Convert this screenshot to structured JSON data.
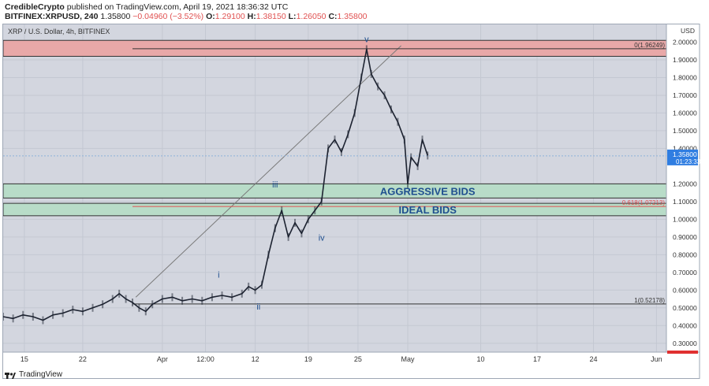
{
  "header": {
    "publisher": "CredibleCrypto",
    "published_text": "published on TradingView.com, April 19, 2021 18:36:32 UTC",
    "symbol": "BITFINEX:XRPUSD, 240",
    "last": "1.35800",
    "change": "−0.04960 (−3.52%)",
    "o_label": "O:",
    "o_value": "1.29100",
    "h_label": "H:",
    "h_value": "1.38150",
    "l_label": "L:",
    "l_value": "1.26050",
    "c_label": "C:",
    "c_value": "1.35800"
  },
  "chart_title": "XRP / U.S. Dollar, 4h, BITFINEX",
  "footer": {
    "brand": "TradingView"
  },
  "chart_data": {
    "type": "line",
    "title": "XRP / U.S. Dollar, 4h, BITFINEX",
    "currency_label": "USD",
    "yaxis_labels": [
      "2.00000",
      "1.90000",
      "1.80000",
      "1.70000",
      "1.60000",
      "1.50000",
      "1.40000",
      "1.20000",
      "1.10000",
      "1.00000",
      "0.90000",
      "0.80000",
      "0.70000",
      "0.60000",
      "0.50000",
      "0.40000",
      "0.30000"
    ],
    "ylim": [
      0.25,
      2.1
    ],
    "xaxis_labels": [
      "15",
      "22",
      "Apr",
      "12:00",
      "12",
      "19",
      "25",
      "May",
      "10",
      "17",
      "24",
      "Jun"
    ],
    "price_tag": {
      "value": 1.358,
      "label": "1.35800",
      "countdown": "01:23:33"
    },
    "zones": [
      {
        "label": "",
        "from": 1.92,
        "to": 2.01,
        "color": "#e8a8a8"
      },
      {
        "label": "AGGRESSIVE BIDS",
        "from": 1.12,
        "to": 1.2,
        "color": "#b8dcc8"
      },
      {
        "label": "IDEAL BIDS",
        "from": 1.02,
        "to": 1.09,
        "color": "#b8dcc8"
      }
    ],
    "fib_levels": [
      {
        "label": "0(1.96249)",
        "value": 1.96249
      },
      {
        "label": "0.618(1.07213)",
        "value": 1.07213
      },
      {
        "label": "1(0.52178)",
        "value": 0.52178
      }
    ],
    "wave_labels": [
      {
        "label": "i",
        "t": 0.325,
        "y": 0.67
      },
      {
        "label": "ii",
        "t": 0.385,
        "y": 0.49
      },
      {
        "label": "iii",
        "t": 0.41,
        "y": 1.18
      },
      {
        "label": "iv",
        "t": 0.48,
        "y": 0.88
      },
      {
        "label": "v",
        "t": 0.548,
        "y": 2.0
      }
    ],
    "series": [
      {
        "values": [
          [
            0.0,
            0.45
          ],
          [
            0.015,
            0.44
          ],
          [
            0.03,
            0.46
          ],
          [
            0.045,
            0.45
          ],
          [
            0.06,
            0.43
          ],
          [
            0.075,
            0.46
          ],
          [
            0.09,
            0.47
          ],
          [
            0.105,
            0.49
          ],
          [
            0.12,
            0.48
          ],
          [
            0.135,
            0.5
          ],
          [
            0.15,
            0.52
          ],
          [
            0.165,
            0.55
          ],
          [
            0.175,
            0.58
          ],
          [
            0.185,
            0.55
          ],
          [
            0.195,
            0.53
          ],
          [
            0.205,
            0.5
          ],
          [
            0.215,
            0.48
          ],
          [
            0.225,
            0.52
          ],
          [
            0.24,
            0.55
          ],
          [
            0.255,
            0.56
          ],
          [
            0.27,
            0.54
          ],
          [
            0.285,
            0.55
          ],
          [
            0.3,
            0.54
          ],
          [
            0.315,
            0.56
          ],
          [
            0.33,
            0.57
          ],
          [
            0.345,
            0.56
          ],
          [
            0.36,
            0.58
          ],
          [
            0.37,
            0.62
          ],
          [
            0.38,
            0.6
          ],
          [
            0.39,
            0.63
          ],
          [
            0.4,
            0.8
          ],
          [
            0.41,
            0.95
          ],
          [
            0.42,
            1.05
          ],
          [
            0.43,
            0.9
          ],
          [
            0.44,
            0.98
          ],
          [
            0.45,
            0.92
          ],
          [
            0.46,
            1.0
          ],
          [
            0.47,
            1.05
          ],
          [
            0.48,
            1.1
          ],
          [
            0.49,
            1.4
          ],
          [
            0.5,
            1.45
          ],
          [
            0.51,
            1.38
          ],
          [
            0.52,
            1.48
          ],
          [
            0.53,
            1.6
          ],
          [
            0.54,
            1.8
          ],
          [
            0.548,
            1.96
          ],
          [
            0.555,
            1.82
          ],
          [
            0.565,
            1.75
          ],
          [
            0.575,
            1.7
          ],
          [
            0.585,
            1.62
          ],
          [
            0.595,
            1.55
          ],
          [
            0.605,
            1.45
          ],
          [
            0.61,
            1.2
          ],
          [
            0.615,
            1.35
          ],
          [
            0.625,
            1.3
          ],
          [
            0.632,
            1.45
          ],
          [
            0.64,
            1.36
          ]
        ]
      }
    ]
  }
}
